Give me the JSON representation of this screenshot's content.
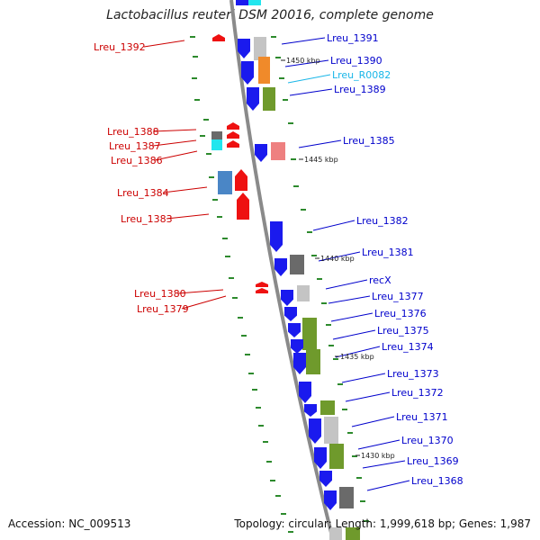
{
  "title": "Lactobacillus reuteri DSM 20016, complete genome",
  "footer": {
    "accession": "Accession: NC_009513",
    "topology": "Topology: circular; Length: 1,999,618 bp; Genes: 1,987"
  },
  "colors": {
    "label_left": "#cc0000",
    "label_right": "#0000cc",
    "rna_label": "#19b6e8",
    "backbone": "#8a8a8a",
    "tick": "#2d8a2d",
    "blue": "#1a1aee",
    "red": "#ee1111",
    "olive": "#6f9a2c",
    "gray": "#6a6a6a",
    "light_gray": "#c4c4c4",
    "cyan": "#22e6ee",
    "steel": "#4a86c6",
    "pink": "#ee8080"
  },
  "scale_labels": [
    "1450 kbp",
    "1445 kbp",
    "1440 kbp",
    "1435 kbp",
    "1430 kbp"
  ],
  "genes_left": [
    "Lreu_1392",
    "Lreu_1388",
    "Lreu_1387",
    "Lreu_1386",
    "Lreu_1384",
    "Lreu_1383",
    "Lreu_1380",
    "Lreu_1379"
  ],
  "genes_right": [
    "Lreu_1391",
    "Lreu_1390",
    "Lreu_R0082",
    "Lreu_1389",
    "Lreu_1385",
    "Lreu_1382",
    "Lreu_1381",
    "recX",
    "Lreu_1377",
    "Lreu_1376",
    "Lreu_1375",
    "Lreu_1374",
    "Lreu_1373",
    "Lreu_1372",
    "Lreu_1371",
    "Lreu_1370",
    "Lreu_1369",
    "Lreu_1368"
  ]
}
